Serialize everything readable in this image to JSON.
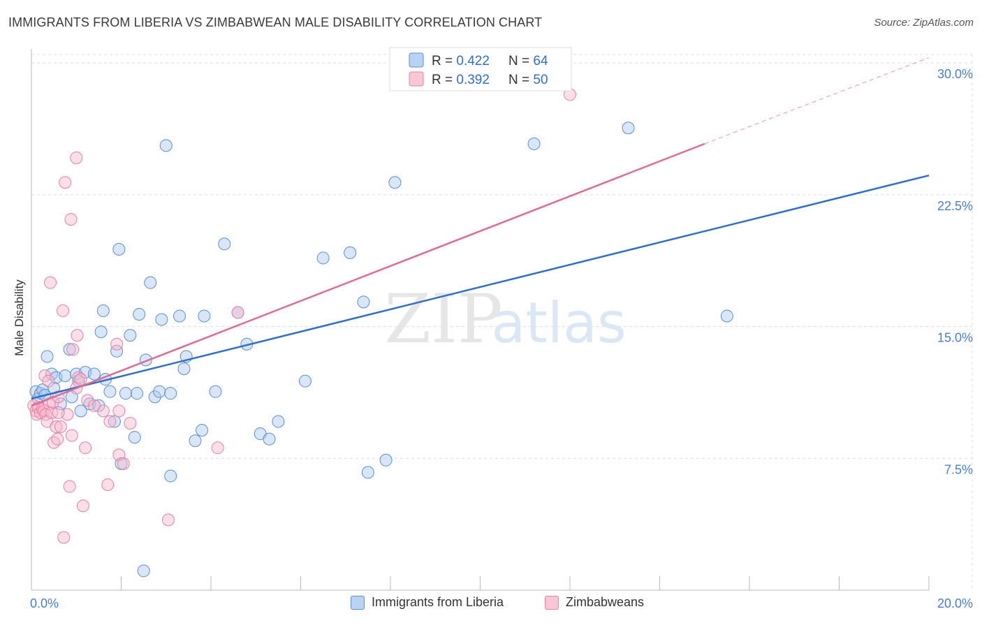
{
  "title": "IMMIGRANTS FROM LIBERIA VS ZIMBABWEAN MALE DISABILITY CORRELATION CHART",
  "source": "Source: ZipAtlas.com",
  "watermark": {
    "part1": "ZIP",
    "part2": "atlas"
  },
  "colors": {
    "blue_fill": "#a8c8ef",
    "blue_stroke": "#5b8fd6",
    "blue_line": "#2f6fd0",
    "pink_fill": "#f7b8cc",
    "pink_stroke": "#e682a4",
    "pink_line": "#e06c96",
    "tick_text": "#4a7fd0",
    "grid": "#dddddd"
  },
  "legend_top": {
    "rows": [
      {
        "r_label": "R = ",
        "r_value": "0.422",
        "n_label": "N = ",
        "n_value": "64"
      },
      {
        "r_label": "R = ",
        "r_value": "0.392",
        "n_label": "N = ",
        "n_value": "50"
      }
    ]
  },
  "legend_bottom": {
    "items": [
      {
        "label": "Immigrants from Liberia"
      },
      {
        "label": "Zimbabweans"
      }
    ]
  },
  "chart_data": {
    "type": "scatter",
    "title": "IMMIGRANTS FROM LIBERIA VS ZIMBABWEAN MALE DISABILITY CORRELATION CHART",
    "xlabel": "",
    "ylabel": "Male Disability",
    "xlim": [
      0,
      20
    ],
    "ylim": [
      0,
      30.8
    ],
    "x_tick_labels": [
      "0.0%",
      "20.0%"
    ],
    "y_ticks": [
      7.5,
      15.0,
      22.5,
      30.0
    ],
    "y_tick_labels": [
      "7.5%",
      "15.0%",
      "22.5%",
      "30.0%"
    ],
    "grid": true,
    "legend_placement": "top-center",
    "series": [
      {
        "name": "Immigrants from Liberia",
        "color": "#a8c8ef",
        "r": 0.422,
        "n": 64,
        "trend": {
          "x": [
            0,
            20
          ],
          "y": [
            10.9,
            23.6
          ],
          "style": "solid"
        },
        "points": [
          [
            0.1,
            11.3
          ],
          [
            0.15,
            10.9
          ],
          [
            0.2,
            11.2
          ],
          [
            0.25,
            11.4
          ],
          [
            0.3,
            11.1
          ],
          [
            0.35,
            13.3
          ],
          [
            0.45,
            12.3
          ],
          [
            0.5,
            11.5
          ],
          [
            0.55,
            12.1
          ],
          [
            0.65,
            10.6
          ],
          [
            0.75,
            12.2
          ],
          [
            0.85,
            13.7
          ],
          [
            0.9,
            11.0
          ],
          [
            1.0,
            12.3
          ],
          [
            1.05,
            11.9
          ],
          [
            1.1,
            10.2
          ],
          [
            1.2,
            12.4
          ],
          [
            1.3,
            10.6
          ],
          [
            1.4,
            12.3
          ],
          [
            1.5,
            10.5
          ],
          [
            1.55,
            14.7
          ],
          [
            1.6,
            15.9
          ],
          [
            1.65,
            12.0
          ],
          [
            1.75,
            11.3
          ],
          [
            1.85,
            9.6
          ],
          [
            1.9,
            13.6
          ],
          [
            1.95,
            19.4
          ],
          [
            2.0,
            7.2
          ],
          [
            2.1,
            11.2
          ],
          [
            2.2,
            14.5
          ],
          [
            2.3,
            8.7
          ],
          [
            2.35,
            11.2
          ],
          [
            2.4,
            15.7
          ],
          [
            2.55,
            13.1
          ],
          [
            2.65,
            17.5
          ],
          [
            2.75,
            11.0
          ],
          [
            2.85,
            11.3
          ],
          [
            2.9,
            15.4
          ],
          [
            3.0,
            25.3
          ],
          [
            3.1,
            6.5
          ],
          [
            3.1,
            11.2
          ],
          [
            3.3,
            15.6
          ],
          [
            3.4,
            12.6
          ],
          [
            3.45,
            13.3
          ],
          [
            3.65,
            8.5
          ],
          [
            3.8,
            9.1
          ],
          [
            3.85,
            15.6
          ],
          [
            4.1,
            11.3
          ],
          [
            4.3,
            19.7
          ],
          [
            4.6,
            15.8
          ],
          [
            4.8,
            14.0
          ],
          [
            5.1,
            8.9
          ],
          [
            5.3,
            8.6
          ],
          [
            5.5,
            9.6
          ],
          [
            6.1,
            11.9
          ],
          [
            6.5,
            18.9
          ],
          [
            7.1,
            19.2
          ],
          [
            7.4,
            16.4
          ],
          [
            7.5,
            6.7
          ],
          [
            7.9,
            7.4
          ],
          [
            8.1,
            23.2
          ],
          [
            11.2,
            25.4
          ],
          [
            13.3,
            26.3
          ],
          [
            15.5,
            15.6
          ],
          [
            2.5,
            1.1
          ]
        ]
      },
      {
        "name": "Zimbabweans",
        "color": "#f7b8cc",
        "r": 0.392,
        "n": 50,
        "trend": {
          "x": [
            0,
            15
          ],
          "y": [
            10.5,
            25.4
          ],
          "style": "solid",
          "extension": {
            "x": [
              15,
              20
            ],
            "y": [
              25.4,
              30.3
            ],
            "style": "dashed"
          }
        },
        "points": [
          [
            0.05,
            10.5
          ],
          [
            0.1,
            10.2
          ],
          [
            0.12,
            10.0
          ],
          [
            0.15,
            10.4
          ],
          [
            0.2,
            10.1
          ],
          [
            0.25,
            10.3
          ],
          [
            0.28,
            10.2
          ],
          [
            0.3,
            12.2
          ],
          [
            0.32,
            10.0
          ],
          [
            0.35,
            9.6
          ],
          [
            0.38,
            11.9
          ],
          [
            0.4,
            10.6
          ],
          [
            0.42,
            17.5
          ],
          [
            0.45,
            10.1
          ],
          [
            0.48,
            10.7
          ],
          [
            0.5,
            8.4
          ],
          [
            0.55,
            9.3
          ],
          [
            0.58,
            8.6
          ],
          [
            0.6,
            11.0
          ],
          [
            0.65,
            9.3
          ],
          [
            0.7,
            15.9
          ],
          [
            0.72,
            3.0
          ],
          [
            0.75,
            23.2
          ],
          [
            0.8,
            10.0
          ],
          [
            0.85,
            5.9
          ],
          [
            0.88,
            21.1
          ],
          [
            0.9,
            8.8
          ],
          [
            0.92,
            13.7
          ],
          [
            1.0,
            11.5
          ],
          [
            1.0,
            24.6
          ],
          [
            1.02,
            14.5
          ],
          [
            1.05,
            12.1
          ],
          [
            1.1,
            12.0
          ],
          [
            1.15,
            4.8
          ],
          [
            1.2,
            8.1
          ],
          [
            1.25,
            10.8
          ],
          [
            1.6,
            10.2
          ],
          [
            1.7,
            6.0
          ],
          [
            1.75,
            9.6
          ],
          [
            1.9,
            14.0
          ],
          [
            1.95,
            10.2
          ],
          [
            1.95,
            7.7
          ],
          [
            2.05,
            7.2
          ],
          [
            2.2,
            9.5
          ],
          [
            3.05,
            4.0
          ],
          [
            4.15,
            8.1
          ],
          [
            4.6,
            15.8
          ],
          [
            12.0,
            28.2
          ],
          [
            0.6,
            10.1
          ],
          [
            1.4,
            10.5
          ]
        ]
      }
    ]
  }
}
